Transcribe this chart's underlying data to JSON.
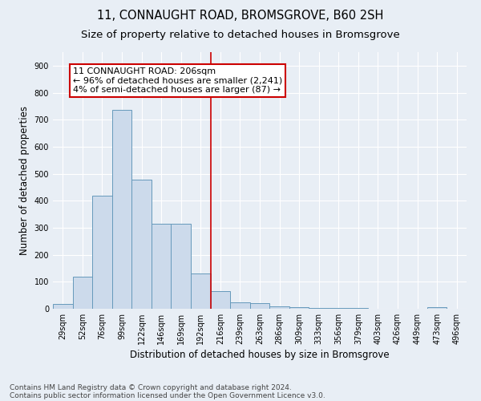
{
  "title": "11, CONNAUGHT ROAD, BROMSGROVE, B60 2SH",
  "subtitle": "Size of property relative to detached houses in Bromsgrove",
  "xlabel": "Distribution of detached houses by size in Bromsgrove",
  "ylabel": "Number of detached properties",
  "bin_labels": [
    "29sqm",
    "52sqm",
    "76sqm",
    "99sqm",
    "122sqm",
    "146sqm",
    "169sqm",
    "192sqm",
    "216sqm",
    "239sqm",
    "263sqm",
    "286sqm",
    "309sqm",
    "333sqm",
    "356sqm",
    "379sqm",
    "403sqm",
    "426sqm",
    "449sqm",
    "473sqm",
    "496sqm"
  ],
  "bar_values": [
    18,
    120,
    418,
    735,
    478,
    315,
    315,
    130,
    65,
    23,
    20,
    10,
    7,
    2,
    2,
    2,
    0,
    0,
    0,
    6,
    0
  ],
  "bar_color": "#ccdaeb",
  "bar_edge_color": "#6699bb",
  "vline_x_index": 7.5,
  "annotation_text": "11 CONNAUGHT ROAD: 206sqm\n← 96% of detached houses are smaller (2,241)\n4% of semi-detached houses are larger (87) →",
  "annotation_box_color": "#ffffff",
  "annotation_box_edge_color": "#cc0000",
  "vline_color": "#cc0000",
  "ylim": [
    0,
    950
  ],
  "yticks": [
    0,
    100,
    200,
    300,
    400,
    500,
    600,
    700,
    800,
    900
  ],
  "background_color": "#e8eef5",
  "footer_line1": "Contains HM Land Registry data © Crown copyright and database right 2024.",
  "footer_line2": "Contains public sector information licensed under the Open Government Licence v3.0.",
  "title_fontsize": 10.5,
  "subtitle_fontsize": 9.5,
  "axis_label_fontsize": 8.5,
  "tick_fontsize": 7,
  "annotation_fontsize": 8,
  "footer_fontsize": 6.5
}
